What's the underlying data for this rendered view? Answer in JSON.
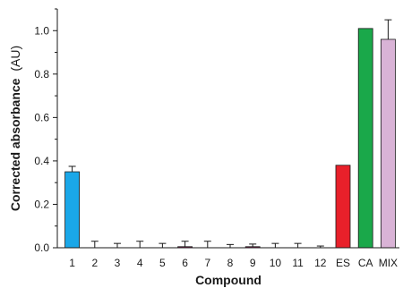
{
  "chart_data": {
    "type": "bar",
    "xlabel": "Compound",
    "ylabel_main": "Corrected absorbance",
    "ylabel_unit": "(AU)",
    "ylim": [
      0,
      1.1
    ],
    "yticks": [
      "0.0",
      "0.2",
      "0.4",
      "0.6",
      "0.8",
      "1.0"
    ],
    "categories": [
      "1",
      "2",
      "3",
      "4",
      "5",
      "6",
      "7",
      "8",
      "9",
      "10",
      "11",
      "12",
      "ES",
      "CA",
      "MIX"
    ],
    "values": [
      0.35,
      0.0,
      0.0,
      0.0,
      0.0,
      0.005,
      0.0,
      0.0,
      0.005,
      0.0,
      0.0,
      0.0,
      0.38,
      1.01,
      0.96
    ],
    "errors": [
      0.025,
      0.03,
      0.02,
      0.03,
      0.02,
      0.025,
      0.03,
      0.015,
      0.012,
      0.02,
      0.02,
      0.008,
      0.0,
      0.0,
      0.09
    ],
    "colors": [
      "#1aa7e8",
      "#ffffff",
      "#ffffff",
      "#ffffff",
      "#ffffff",
      "#9b1c5a",
      "#ffffff",
      "#ffffff",
      "#9b1c5a",
      "#ffffff",
      "#ffffff",
      "#ffffff",
      "#e8202a",
      "#1aa84a",
      "#d9b3d6"
    ],
    "grid": false,
    "legend": "none"
  }
}
